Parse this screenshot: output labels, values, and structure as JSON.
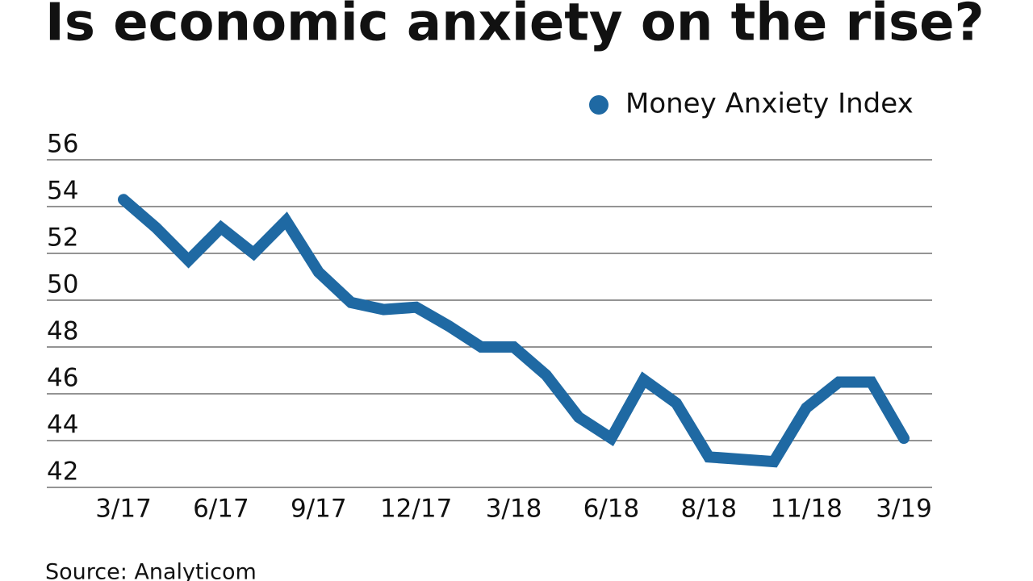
{
  "chart_data": {
    "type": "line",
    "title": "Is economic anxiety on the rise?",
    "source": "Source: Analyticom",
    "categories": [
      "3/17",
      null,
      null,
      "6/17",
      null,
      null,
      "9/17",
      null,
      null,
      "12/17",
      null,
      null,
      "3/18",
      null,
      null,
      "6/18",
      null,
      null,
      "8/18",
      null,
      null,
      "11/18",
      null,
      null,
      "3/19"
    ],
    "series": [
      {
        "name": "Money Anxiety Index",
        "color": "#1f69a3",
        "values": [
          54.3,
          53.1,
          51.7,
          53.1,
          52.0,
          53.4,
          51.2,
          49.9,
          49.6,
          49.7,
          48.9,
          48.0,
          48.0,
          46.8,
          45.0,
          44.1,
          46.6,
          45.6,
          43.3,
          43.2,
          43.1,
          45.4,
          46.5,
          46.5,
          44.1
        ]
      }
    ],
    "ylim": [
      42,
      56
    ],
    "yticks": [
      42,
      44,
      46,
      48,
      50,
      52,
      54,
      56
    ],
    "grid": true,
    "legend": "top-right"
  }
}
